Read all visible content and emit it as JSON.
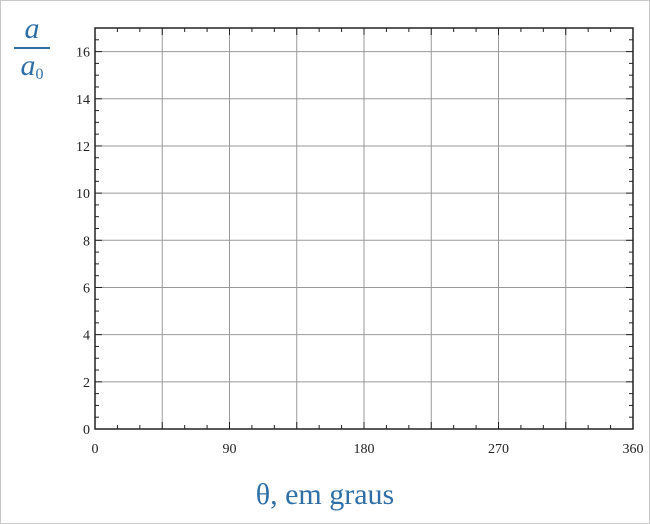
{
  "chart_data": {
    "type": "line",
    "title": "",
    "ylabel_num": "a",
    "ylabel_den": "a",
    "ylabel_den_sub": "0",
    "xlabel": "θ, em graus",
    "xlim": [
      0,
      360
    ],
    "ylim": [
      0,
      17
    ],
    "xticks": [
      0,
      90,
      180,
      270,
      360
    ],
    "xtick_labels": [
      "0",
      "90",
      "180",
      "270",
      "360"
    ],
    "yticks": [
      0,
      2,
      4,
      6,
      8,
      10,
      12,
      14,
      16
    ],
    "ytick_labels": [
      "0",
      "2",
      "4",
      "6",
      "8",
      "10",
      "12",
      "14",
      "16"
    ],
    "x_gridlines": [
      45,
      90,
      135,
      180,
      225,
      270,
      315
    ],
    "y_gridlines": [
      2,
      4,
      6,
      8,
      10,
      12,
      14,
      16
    ],
    "grid": true,
    "series": []
  }
}
